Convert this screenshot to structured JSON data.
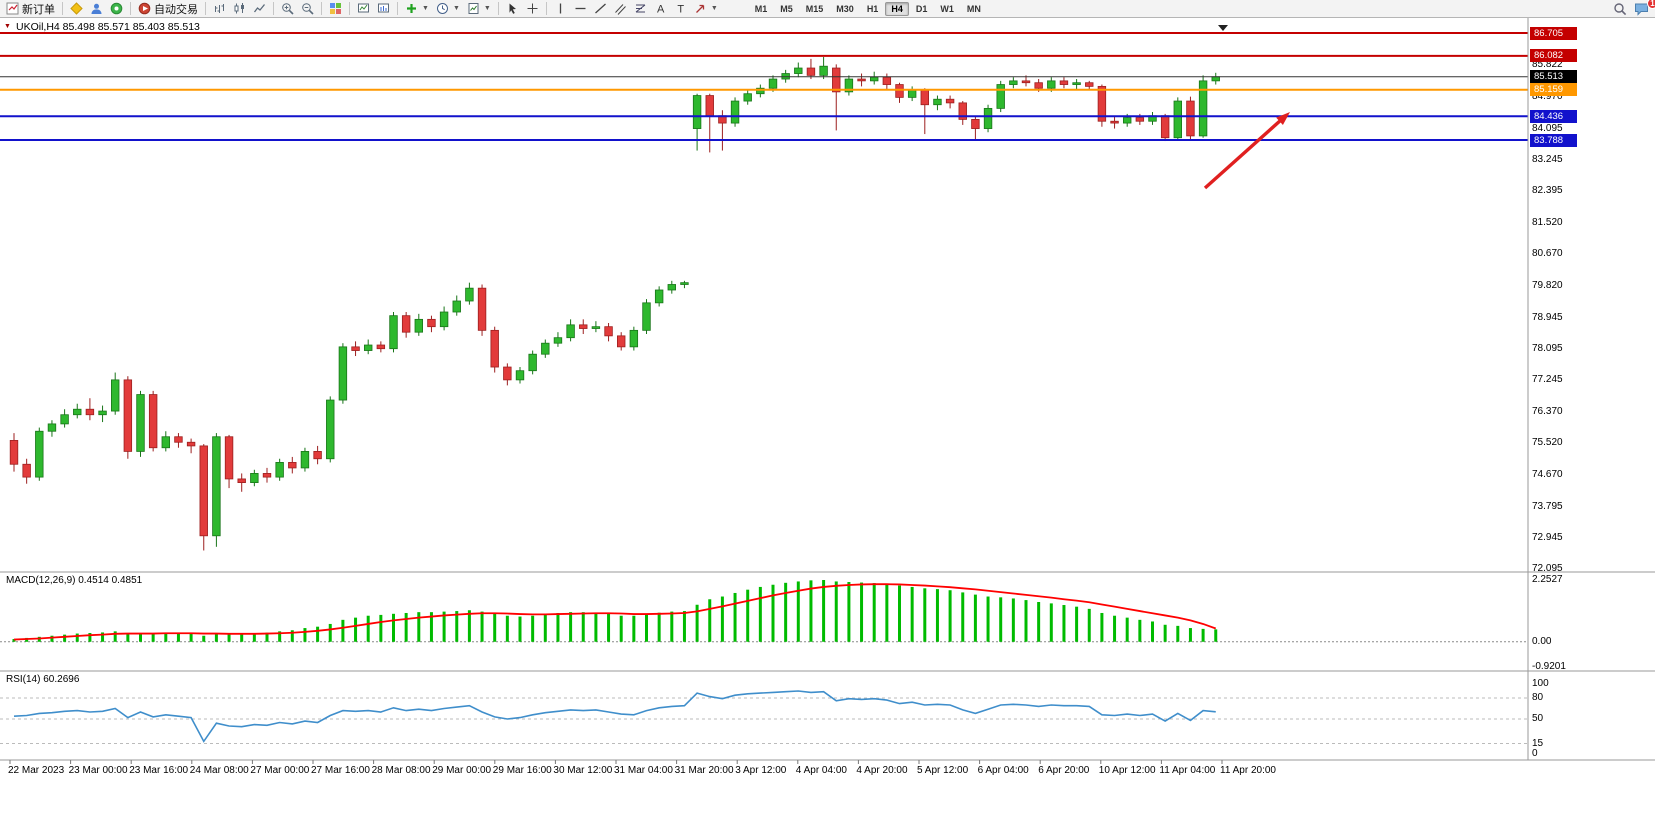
{
  "toolbar": {
    "new_order": "新订单",
    "auto_trading": "自动交易",
    "timeframes": [
      "M1",
      "M5",
      "M15",
      "M30",
      "H1",
      "H4",
      "D1",
      "W1",
      "MN"
    ],
    "active_timeframe": "H4",
    "chat_badge": "1"
  },
  "chart": {
    "title": "UKOil,H4 85.498 85.571 85.403 85.513",
    "price_tags": [
      {
        "text": "86.705",
        "color": "#c40000",
        "price": 86.705
      },
      {
        "text": "86.082",
        "color": "#c40000",
        "price": 86.082
      },
      {
        "text": "85.513",
        "color": "#000000",
        "price": 85.513
      },
      {
        "text": "85.159",
        "color": "#ff9800",
        "price": 85.159
      },
      {
        "text": "84.436",
        "color": "#1212cc",
        "price": 84.436
      },
      {
        "text": "83.788",
        "color": "#1212cc",
        "price": 83.788
      }
    ],
    "hlines": [
      {
        "price": 86.705,
        "color": "#c40000",
        "w": 2
      },
      {
        "price": 86.082,
        "color": "#c40000",
        "w": 2
      },
      {
        "price": 85.513,
        "color": "#333333",
        "w": 1
      },
      {
        "price": 85.159,
        "color": "#ff9800",
        "w": 2
      },
      {
        "price": 84.436,
        "color": "#1212cc",
        "w": 2
      },
      {
        "price": 83.788,
        "color": "#1212cc",
        "w": 2
      }
    ]
  },
  "panels": {
    "macd_label": "MACD(12,26,9) 0.4514 0.4851",
    "rsi_label": "RSI(14) 60.2696"
  },
  "icons": [
    "new-order-icon",
    "mql5-icon",
    "profile-icon",
    "community-icon",
    "autotrading-icon",
    "bar-chart-icon",
    "candlestick-icon",
    "line-chart-icon",
    "zoom-in-icon",
    "zoom-out-icon",
    "tile-windows-icon",
    "chart-window-icon",
    "chart-arrange-icon",
    "indicators-icon",
    "periods-icon",
    "templates-icon",
    "cursor-icon",
    "crosshair-icon",
    "vertical-line-icon",
    "horizontal-line-icon",
    "trendline-icon",
    "channel-icon",
    "fibonacci-icon",
    "text-icon",
    "label-icon",
    "shapes-icon",
    "search-icon",
    "chat-icon",
    "chart-collapse-icon",
    "current-bar-marker",
    "trend-arrow"
  ],
  "colors": {
    "bull": "#2eb82e",
    "bull_border": "#187518",
    "bear": "#e23b3b",
    "bear_border": "#9c1f1f",
    "macd_hist": "#00bb00",
    "macd_signal": "#ff0000",
    "rsi_line": "#3f8ecb",
    "arrow": "#e02020",
    "axis_line": "#9a9a9a"
  },
  "chart_data": {
    "type": "candlestick",
    "symbol": "UKOil",
    "timeframe": "H4",
    "price_range": [
      72.095,
      86.705
    ],
    "candles": [
      [
        75.6,
        75.8,
        74.75,
        74.95
      ],
      [
        74.95,
        75.1,
        74.42,
        74.6
      ],
      [
        74.6,
        75.95,
        74.5,
        75.85
      ],
      [
        75.85,
        76.15,
        75.7,
        76.05
      ],
      [
        76.05,
        76.45,
        75.95,
        76.3
      ],
      [
        76.3,
        76.6,
        76.2,
        76.45
      ],
      [
        76.45,
        76.75,
        76.15,
        76.3
      ],
      [
        76.3,
        76.55,
        76.1,
        76.4
      ],
      [
        76.4,
        77.45,
        76.3,
        77.25
      ],
      [
        77.25,
        77.35,
        75.1,
        75.3
      ],
      [
        75.3,
        76.95,
        75.15,
        76.85
      ],
      [
        76.85,
        76.95,
        75.3,
        75.4
      ],
      [
        75.4,
        75.85,
        75.3,
        75.7
      ],
      [
        75.7,
        75.8,
        75.4,
        75.55
      ],
      [
        75.55,
        75.65,
        75.25,
        75.45
      ],
      [
        75.45,
        75.5,
        72.6,
        73.0
      ],
      [
        73.0,
        75.8,
        72.7,
        75.7
      ],
      [
        75.7,
        75.75,
        74.3,
        74.55
      ],
      [
        74.55,
        74.7,
        74.2,
        74.45
      ],
      [
        74.45,
        74.8,
        74.35,
        74.7
      ],
      [
        74.7,
        74.85,
        74.45,
        74.6
      ],
      [
        74.6,
        75.1,
        74.5,
        75.0
      ],
      [
        75.0,
        75.15,
        74.7,
        74.85
      ],
      [
        74.85,
        75.4,
        74.75,
        75.3
      ],
      [
        75.3,
        75.45,
        74.95,
        75.1
      ],
      [
        75.1,
        76.8,
        75.0,
        76.7
      ],
      [
        76.7,
        78.25,
        76.6,
        78.15
      ],
      [
        78.15,
        78.3,
        77.9,
        78.05
      ],
      [
        78.05,
        78.35,
        77.95,
        78.2
      ],
      [
        78.2,
        78.3,
        78.0,
        78.1
      ],
      [
        78.1,
        79.1,
        78.0,
        79.0
      ],
      [
        79.0,
        79.1,
        78.4,
        78.55
      ],
      [
        78.55,
        79.05,
        78.45,
        78.9
      ],
      [
        78.9,
        79.0,
        78.55,
        78.7
      ],
      [
        78.7,
        79.25,
        78.6,
        79.1
      ],
      [
        79.1,
        79.55,
        79.0,
        79.4
      ],
      [
        79.4,
        79.9,
        79.3,
        79.75
      ],
      [
        79.75,
        79.85,
        78.45,
        78.6
      ],
      [
        78.6,
        78.7,
        77.45,
        77.6
      ],
      [
        77.6,
        77.7,
        77.1,
        77.25
      ],
      [
        77.25,
        77.6,
        77.15,
        77.5
      ],
      [
        77.5,
        78.05,
        77.4,
        77.95
      ],
      [
        77.95,
        78.35,
        77.85,
        78.25
      ],
      [
        78.25,
        78.55,
        78.15,
        78.4
      ],
      [
        78.4,
        78.9,
        78.3,
        78.75
      ],
      [
        78.75,
        78.9,
        78.5,
        78.65
      ],
      [
        78.65,
        78.85,
        78.55,
        78.7
      ],
      [
        78.7,
        78.8,
        78.3,
        78.45
      ],
      [
        78.45,
        78.55,
        78.05,
        78.15
      ],
      [
        78.15,
        78.7,
        78.05,
        78.6
      ],
      [
        78.6,
        79.45,
        78.5,
        79.35
      ],
      [
        79.35,
        79.8,
        79.25,
        79.7
      ],
      [
        79.7,
        79.95,
        79.6,
        79.85
      ],
      [
        79.85,
        79.95,
        79.75,
        79.9
      ],
      [
        84.1,
        85.05,
        83.5,
        85.0
      ],
      [
        85.0,
        85.05,
        83.45,
        84.45
      ],
      [
        84.45,
        84.6,
        83.5,
        84.25
      ],
      [
        84.25,
        84.95,
        84.15,
        84.85
      ],
      [
        84.85,
        85.15,
        84.75,
        85.05
      ],
      [
        85.05,
        85.3,
        84.95,
        85.2
      ],
      [
        85.2,
        85.55,
        85.1,
        85.45
      ],
      [
        85.45,
        85.7,
        85.35,
        85.6
      ],
      [
        85.6,
        85.9,
        85.5,
        85.75
      ],
      [
        85.75,
        86.0,
        85.45,
        85.55
      ],
      [
        85.55,
        86.05,
        85.45,
        85.8
      ],
      [
        85.75,
        85.85,
        84.05,
        85.1
      ],
      [
        85.1,
        85.55,
        85.0,
        85.45
      ],
      [
        85.45,
        85.6,
        85.25,
        85.4
      ],
      [
        85.4,
        85.65,
        85.3,
        85.5
      ],
      [
        85.5,
        85.6,
        85.15,
        85.3
      ],
      [
        85.3,
        85.35,
        84.8,
        84.95
      ],
      [
        84.95,
        85.25,
        84.85,
        85.15
      ],
      [
        85.15,
        85.2,
        83.95,
        84.75
      ],
      [
        84.75,
        85.0,
        84.6,
        84.9
      ],
      [
        84.9,
        85.0,
        84.65,
        84.8
      ],
      [
        84.8,
        84.85,
        84.2,
        84.35
      ],
      [
        84.35,
        84.45,
        83.8,
        84.1
      ],
      [
        84.1,
        84.75,
        84.0,
        84.65
      ],
      [
        84.65,
        85.4,
        84.55,
        85.3
      ],
      [
        85.3,
        85.5,
        85.2,
        85.4
      ],
      [
        85.4,
        85.55,
        85.25,
        85.35
      ],
      [
        85.35,
        85.45,
        85.1,
        85.2
      ],
      [
        85.2,
        85.5,
        85.1,
        85.4
      ],
      [
        85.4,
        85.5,
        85.2,
        85.3
      ],
      [
        85.3,
        85.45,
        85.15,
        85.35
      ],
      [
        85.35,
        85.4,
        85.15,
        85.25
      ],
      [
        85.25,
        85.3,
        84.15,
        84.3
      ],
      [
        84.3,
        84.45,
        84.1,
        84.25
      ],
      [
        84.25,
        84.5,
        84.15,
        84.4
      ],
      [
        84.4,
        84.5,
        84.2,
        84.3
      ],
      [
        84.3,
        84.55,
        84.2,
        84.45
      ],
      [
        84.45,
        84.5,
        83.76,
        83.85
      ],
      [
        83.85,
        84.95,
        83.78,
        84.85
      ],
      [
        84.85,
        84.97,
        83.8,
        83.9
      ],
      [
        83.9,
        85.55,
        83.85,
        85.4
      ],
      [
        85.4,
        85.62,
        85.3,
        85.513
      ]
    ],
    "price_ticks": [
      {
        "label": "85.822",
        "price": 85.822
      },
      {
        "label": "84.970",
        "price": 84.97
      },
      {
        "label": "84.095",
        "price": 84.095
      },
      {
        "label": "83.245",
        "price": 83.245
      },
      {
        "label": "82.395",
        "price": 82.395
      },
      {
        "label": "81.520",
        "price": 81.52
      },
      {
        "label": "80.670",
        "price": 80.67
      },
      {
        "label": "79.820",
        "price": 79.82
      },
      {
        "label": "78.945",
        "price": 78.945
      },
      {
        "label": "78.095",
        "price": 78.095
      },
      {
        "label": "77.245",
        "price": 77.245
      },
      {
        "label": "76.370",
        "price": 76.37
      },
      {
        "label": "75.520",
        "price": 75.52
      },
      {
        "label": "74.670",
        "price": 74.67
      },
      {
        "label": "73.795",
        "price": 73.795
      },
      {
        "label": "72.945",
        "price": 72.945
      },
      {
        "label": "72.095",
        "price": 72.095
      }
    ],
    "time_labels": [
      "22 Mar 2023",
      "23 Mar 00:00",
      "23 Mar 16:00",
      "24 Mar 08:00",
      "27 Mar 00:00",
      "27 Mar 16:00",
      "28 Mar 08:00",
      "29 Mar 00:00",
      "29 Mar 16:00",
      "30 Mar 12:00",
      "31 Mar 04:00",
      "31 Mar 20:00",
      "3 Apr 12:00",
      "4 Apr 04:00",
      "4 Apr 20:00",
      "5 Apr 12:00",
      "6 Apr 04:00",
      "6 Apr 20:00",
      "10 Apr 12:00",
      "11 Apr 04:00",
      "11 Apr 20:00"
    ],
    "indicators": {
      "macd": {
        "name": "MACD(12,26,9)",
        "values_text": [
          "0.4514",
          "0.4851"
        ],
        "range": [
          -0.9201,
          2.2527
        ],
        "axis_labels": [
          "2.2527",
          "0.00",
          "-0.9201"
        ],
        "histogram": [
          0.1,
          0.14,
          0.18,
          0.22,
          0.26,
          0.3,
          0.32,
          0.34,
          0.38,
          0.3,
          0.32,
          0.3,
          0.32,
          0.33,
          0.32,
          0.22,
          0.3,
          0.28,
          0.27,
          0.3,
          0.33,
          0.38,
          0.42,
          0.5,
          0.55,
          0.65,
          0.8,
          0.88,
          0.95,
          0.98,
          1.02,
          1.05,
          1.08,
          1.08,
          1.1,
          1.12,
          1.15,
          1.1,
          1.02,
          0.95,
          0.92,
          0.95,
          1.0,
          1.05,
          1.08,
          1.08,
          1.06,
          1.02,
          0.95,
          0.95,
          1.0,
          1.06,
          1.1,
          1.12,
          1.35,
          1.55,
          1.65,
          1.78,
          1.9,
          2.0,
          2.08,
          2.15,
          2.2,
          2.24,
          2.2527,
          2.2,
          2.18,
          2.16,
          2.14,
          2.1,
          2.05,
          2.0,
          1.95,
          1.92,
          1.88,
          1.8,
          1.72,
          1.65,
          1.62,
          1.58,
          1.52,
          1.45,
          1.4,
          1.34,
          1.28,
          1.2,
          1.05,
          0.95,
          0.88,
          0.8,
          0.74,
          0.62,
          0.58,
          0.5,
          0.47,
          0.4514
        ],
        "signal": [
          0.08,
          0.1,
          0.12,
          0.15,
          0.18,
          0.21,
          0.24,
          0.26,
          0.29,
          0.3,
          0.3,
          0.3,
          0.31,
          0.31,
          0.31,
          0.3,
          0.3,
          0.29,
          0.29,
          0.29,
          0.3,
          0.31,
          0.33,
          0.36,
          0.4,
          0.45,
          0.51,
          0.58,
          0.65,
          0.72,
          0.78,
          0.83,
          0.88,
          0.92,
          0.96,
          0.99,
          1.02,
          1.04,
          1.04,
          1.03,
          1.01,
          1.0,
          1.0,
          1.01,
          1.02,
          1.03,
          1.04,
          1.04,
          1.03,
          1.01,
          1.01,
          1.02,
          1.03,
          1.05,
          1.11,
          1.2,
          1.29,
          1.39,
          1.49,
          1.59,
          1.69,
          1.78,
          1.86,
          1.94,
          2.0,
          2.04,
          2.07,
          2.09,
          2.1,
          2.1,
          2.09,
          2.07,
          2.05,
          2.02,
          1.99,
          1.95,
          1.91,
          1.86,
          1.81,
          1.76,
          1.71,
          1.66,
          1.61,
          1.55,
          1.5,
          1.44,
          1.36,
          1.28,
          1.2,
          1.12,
          1.04,
          0.96,
          0.88,
          0.78,
          0.65,
          0.4851
        ]
      },
      "rsi": {
        "name": "RSI(14)",
        "value_text": "60.2696",
        "range": [
          0,
          100
        ],
        "levels": [
          80,
          50,
          15
        ],
        "axis_labels": [
          "100",
          "80",
          "50",
          "15",
          "0"
        ],
        "values": [
          54,
          55,
          58,
          59,
          61,
          62,
          60,
          61,
          65,
          52,
          60,
          53,
          56,
          54,
          52,
          18,
          44,
          40,
          39,
          42,
          41,
          45,
          43,
          47,
          45,
          55,
          62,
          61,
          62,
          60,
          66,
          62,
          64,
          62,
          65,
          67,
          69,
          60,
          53,
          50,
          52,
          56,
          59,
          61,
          63,
          62,
          63,
          60,
          57,
          56,
          62,
          66,
          68,
          69,
          87,
          82,
          79,
          84,
          86,
          87,
          88,
          89,
          90,
          88,
          89,
          76,
          79,
          78,
          79,
          77,
          72,
          74,
          70,
          71,
          70,
          63,
          58,
          64,
          70,
          71,
          70,
          68,
          70,
          69,
          69,
          68,
          56,
          55,
          57,
          55,
          57,
          47,
          58,
          48,
          62,
          60.2696
        ]
      }
    }
  }
}
